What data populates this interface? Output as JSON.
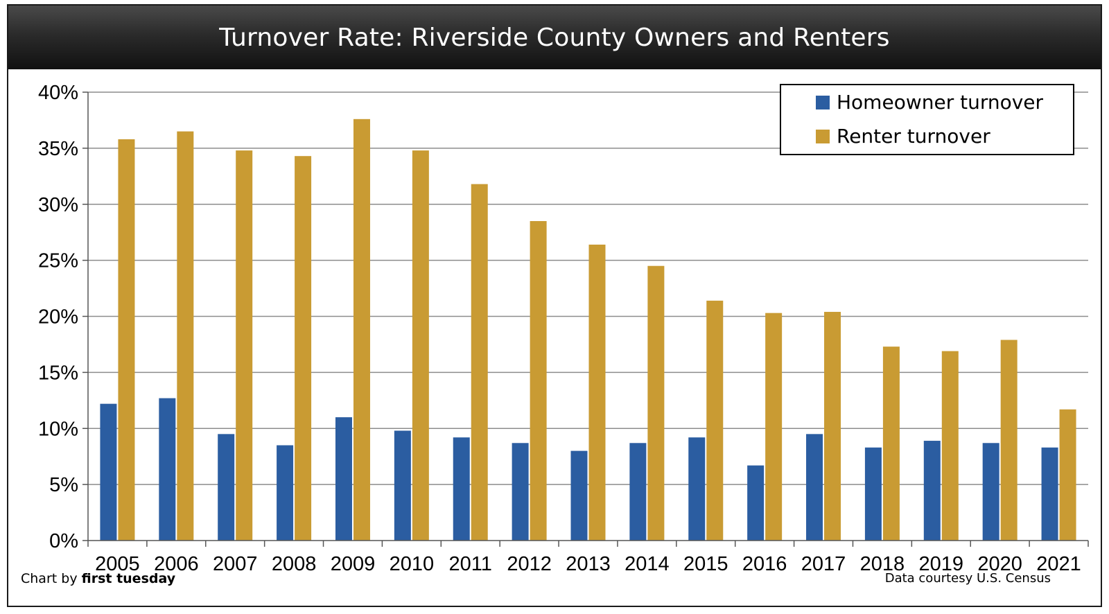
{
  "title": "Turnover Rate: Riverside County Owners and Renters",
  "credits": {
    "left_prefix": "Chart by ",
    "left_brand": "first tuesday",
    "right": "Data courtesy U.S. Census"
  },
  "colors": {
    "homeowner": "#2B5DA1",
    "renter": "#C99B33",
    "grid": "#8c8c8c",
    "axis": "#555555"
  },
  "chart_data": {
    "type": "bar",
    "title": "Turnover Rate: Riverside County Owners and Renters",
    "xlabel": "",
    "ylabel": "",
    "ylim": [
      0,
      40
    ],
    "yticks": [
      0,
      5,
      10,
      15,
      20,
      25,
      30,
      35,
      40
    ],
    "ytick_labels": [
      "0%",
      "5%",
      "10%",
      "15%",
      "20%",
      "25%",
      "30%",
      "35%",
      "40%"
    ],
    "grid": true,
    "legend_position": "top-right",
    "categories": [
      "2005",
      "2006",
      "2007",
      "2008",
      "2009",
      "2010",
      "2011",
      "2012",
      "2013",
      "2014",
      "2015",
      "2016",
      "2017",
      "2018",
      "2019",
      "2020",
      "2021"
    ],
    "series": [
      {
        "name": "Homeowner turnover",
        "values": [
          12.2,
          12.7,
          9.5,
          8.5,
          11.0,
          9.8,
          9.2,
          8.7,
          8.0,
          8.7,
          9.2,
          6.7,
          9.5,
          8.3,
          8.9,
          8.7,
          8.3
        ]
      },
      {
        "name": "Renter turnover",
        "values": [
          35.8,
          36.5,
          34.8,
          34.3,
          37.6,
          34.8,
          31.8,
          28.5,
          26.4,
          24.5,
          21.4,
          20.3,
          20.4,
          17.3,
          16.9,
          17.9,
          11.7
        ]
      }
    ]
  }
}
